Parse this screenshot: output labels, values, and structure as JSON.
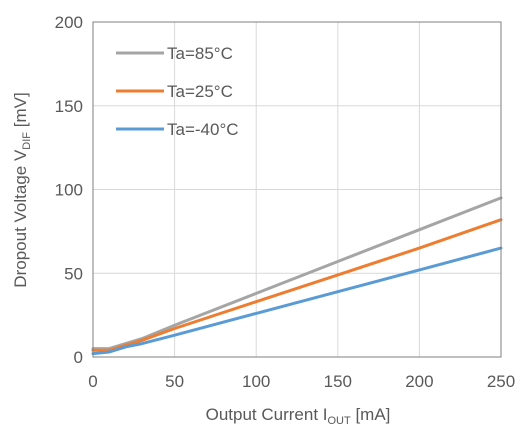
{
  "chart_data": {
    "type": "line",
    "title": "",
    "xlabel": {
      "main": "Output Current I",
      "sub": "OUT",
      "unit": " [mA]"
    },
    "ylabel": {
      "main": "Dropout Voltage V",
      "sub": "DIF",
      "unit": " [mV]"
    },
    "xlim": [
      0,
      250
    ],
    "ylim": [
      0,
      200
    ],
    "xticks": [
      "0",
      "50",
      "100",
      "150",
      "200",
      "250"
    ],
    "yticks": [
      "0",
      "50",
      "100",
      "150",
      "200"
    ],
    "grid": true,
    "legend_position": "top-left",
    "series": [
      {
        "name": "Ta=85°C",
        "color": "#a5a5a5",
        "x": [
          0,
          10,
          20,
          30,
          50,
          100,
          150,
          200,
          250
        ],
        "y": [
          5,
          5,
          8,
          11,
          19,
          38,
          57,
          76,
          95
        ]
      },
      {
        "name": "Ta=25°C",
        "color": "#ed7d31",
        "x": [
          0,
          10,
          20,
          30,
          50,
          100,
          150,
          200,
          250
        ],
        "y": [
          4,
          4,
          7,
          10,
          17,
          33,
          49,
          65,
          82
        ]
      },
      {
        "name": "Ta=-40°C",
        "color": "#5b9bd5",
        "x": [
          0,
          10,
          20,
          30,
          50,
          100,
          150,
          200,
          250
        ],
        "y": [
          2,
          3,
          6,
          8,
          13,
          26,
          39,
          52,
          65
        ]
      }
    ]
  }
}
